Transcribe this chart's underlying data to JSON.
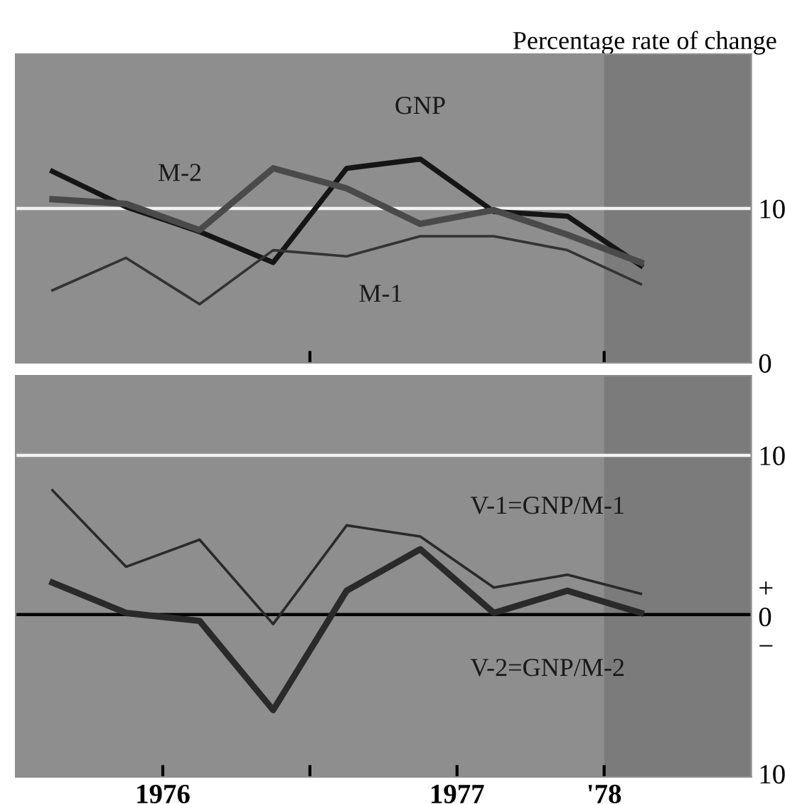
{
  "chart_data": [
    {
      "type": "line",
      "ylabel": "Percentage rate of change",
      "x": [
        1976.125,
        1976.375,
        1976.625,
        1976.875,
        1977.125,
        1977.375,
        1977.625,
        1977.875,
        1978.125
      ],
      "series": [
        {
          "name": "GNP",
          "color": "#151515",
          "values": [
            12.4,
            10.1,
            8.5,
            6.5,
            12.6,
            13.2,
            9.8,
            9.5,
            6.3
          ]
        },
        {
          "name": "M-2",
          "color": "#4a4a4a",
          "values": [
            10.6,
            10.3,
            8.6,
            12.6,
            11.3,
            9.0,
            9.9,
            8.3,
            6.5
          ]
        },
        {
          "name": "M-1",
          "color": "#333333",
          "values": [
            4.7,
            6.8,
            3.8,
            7.3,
            6.9,
            8.2,
            8.2,
            7.3,
            5.1
          ]
        }
      ],
      "xlim": [
        1976,
        1978.5
      ],
      "xticks": [
        {
          "value": 1977,
          "label": null
        },
        {
          "value": 1978,
          "label": null
        }
      ],
      "ylim": [
        0,
        20
      ],
      "yticks": [
        0,
        10
      ],
      "tick_labels": "y",
      "grid": false,
      "legend": false,
      "ref_lines": [
        {
          "axis": "y",
          "value": 10,
          "color": "#f2f2f2"
        }
      ],
      "bands": [
        {
          "axis": "x",
          "from": 1978,
          "to": 1978.5,
          "color": "#7b7b7b"
        }
      ]
    },
    {
      "type": "line",
      "x": [
        1976.125,
        1976.375,
        1976.625,
        1976.875,
        1977.125,
        1977.375,
        1977.625,
        1977.875,
        1978.125
      ],
      "series": [
        {
          "name": "V-1=GNP/M-1",
          "color": "#2a2a2a",
          "values": [
            7.8,
            3.0,
            4.7,
            -0.6,
            5.6,
            4.9,
            1.7,
            2.5,
            1.3
          ]
        },
        {
          "name": "V-2=GNP/M-2",
          "color": "#2a2a2a",
          "values": [
            2.0,
            0.1,
            -0.4,
            -6.0,
            1.5,
            4.1,
            0.1,
            1.5,
            0.1
          ]
        }
      ],
      "xlim": [
        1976,
        1978.5
      ],
      "xticks": [
        {
          "value": 1976.5,
          "label": "1976"
        },
        {
          "value": 1977,
          "label": null
        },
        {
          "value": 1977.5,
          "label": "1977"
        },
        {
          "value": 1978,
          "label": "'78"
        }
      ],
      "ylim": [
        -10.2,
        15
      ],
      "yticks": [
        {
          "value": -10,
          "label": "10"
        },
        {
          "value": 0,
          "label": "+\n0\n−"
        },
        10
      ],
      "grid": false,
      "legend": false,
      "ref_lines": [
        {
          "axis": "y",
          "value": 10,
          "color": "#f2f2f2"
        },
        {
          "axis": "y",
          "value": 0,
          "color": "#000000"
        }
      ],
      "bands": [
        {
          "axis": "x",
          "from": 1978,
          "to": 1978.5,
          "color": "#7b7b7b"
        }
      ]
    }
  ]
}
